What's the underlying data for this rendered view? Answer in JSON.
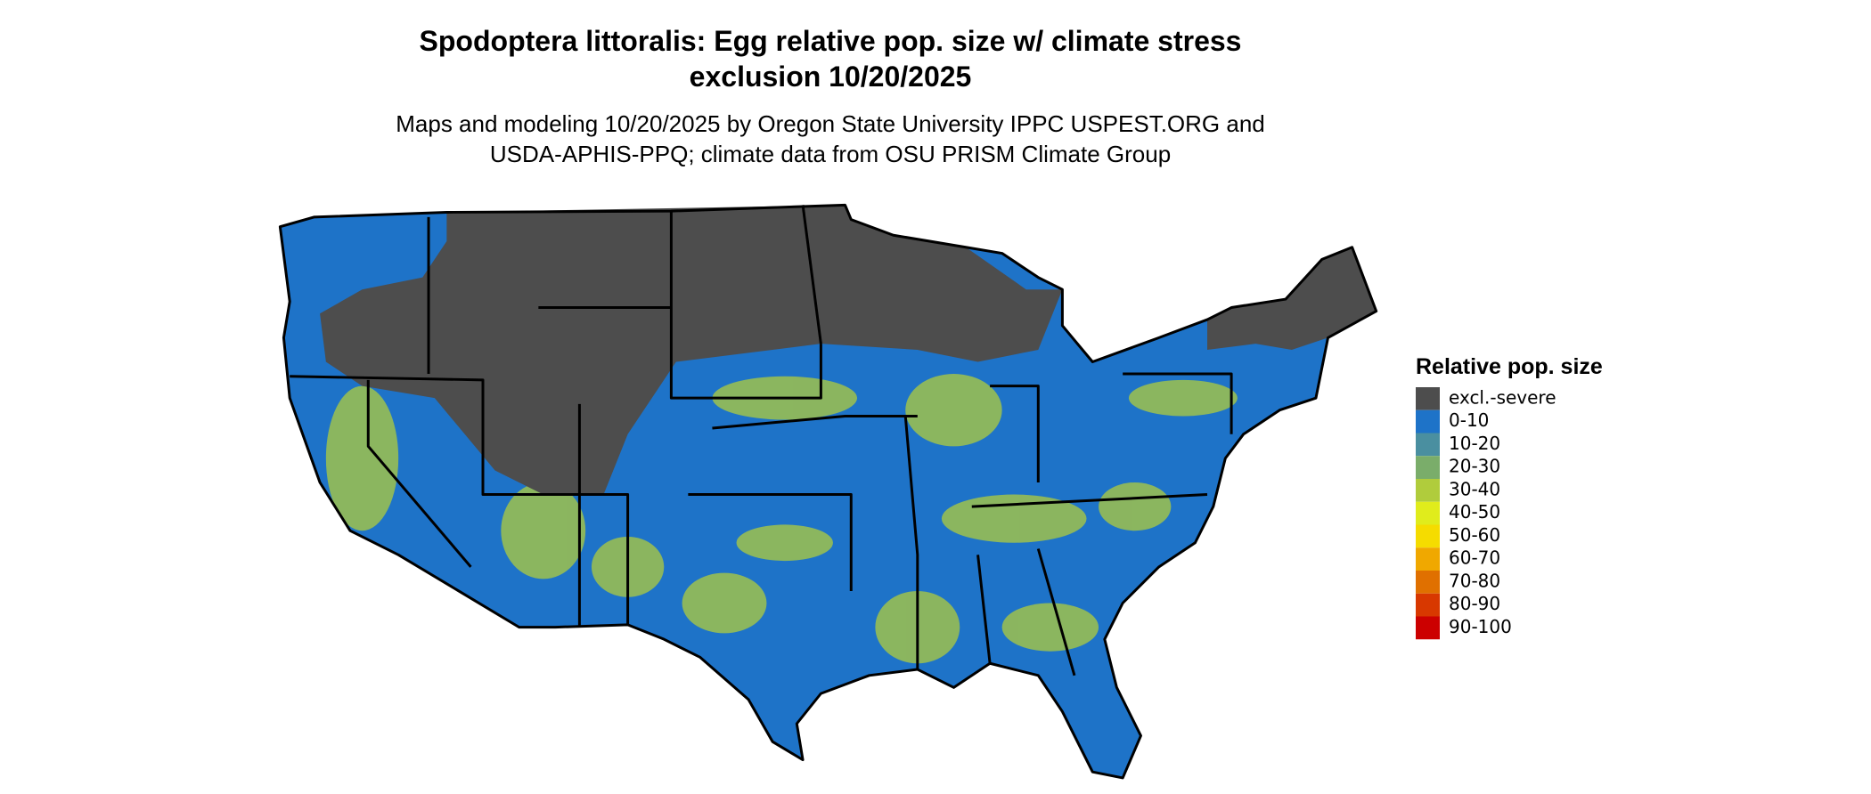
{
  "title_lines": [
    "Spodoptera littoralis: Egg relative pop. size w/ climate stress",
    "exclusion 10/20/2025"
  ],
  "subtitle_lines": [
    "Maps and modeling 10/20/2025 by Oregon State University IPPC USPEST.ORG and",
    "USDA-APHIS-PPQ; climate data from OSU PRISM Climate Group"
  ],
  "legend": {
    "title": "Relative pop. size",
    "items": [
      {
        "label": "excl.-severe",
        "color": "#4d4d4d"
      },
      {
        "label": "0-10",
        "color": "#1e73c8"
      },
      {
        "label": "10-20",
        "color": "#4a8fa0"
      },
      {
        "label": "20-30",
        "color": "#7aad6a"
      },
      {
        "label": "30-40",
        "color": "#b0cc3c"
      },
      {
        "label": "40-50",
        "color": "#e0ec1c"
      },
      {
        "label": "50-60",
        "color": "#f5dc00"
      },
      {
        "label": "60-70",
        "color": "#f0a800"
      },
      {
        "label": "70-80",
        "color": "#e07000"
      },
      {
        "label": "80-90",
        "color": "#d83800"
      },
      {
        "label": "90-100",
        "color": "#cc0000"
      }
    ]
  }
}
